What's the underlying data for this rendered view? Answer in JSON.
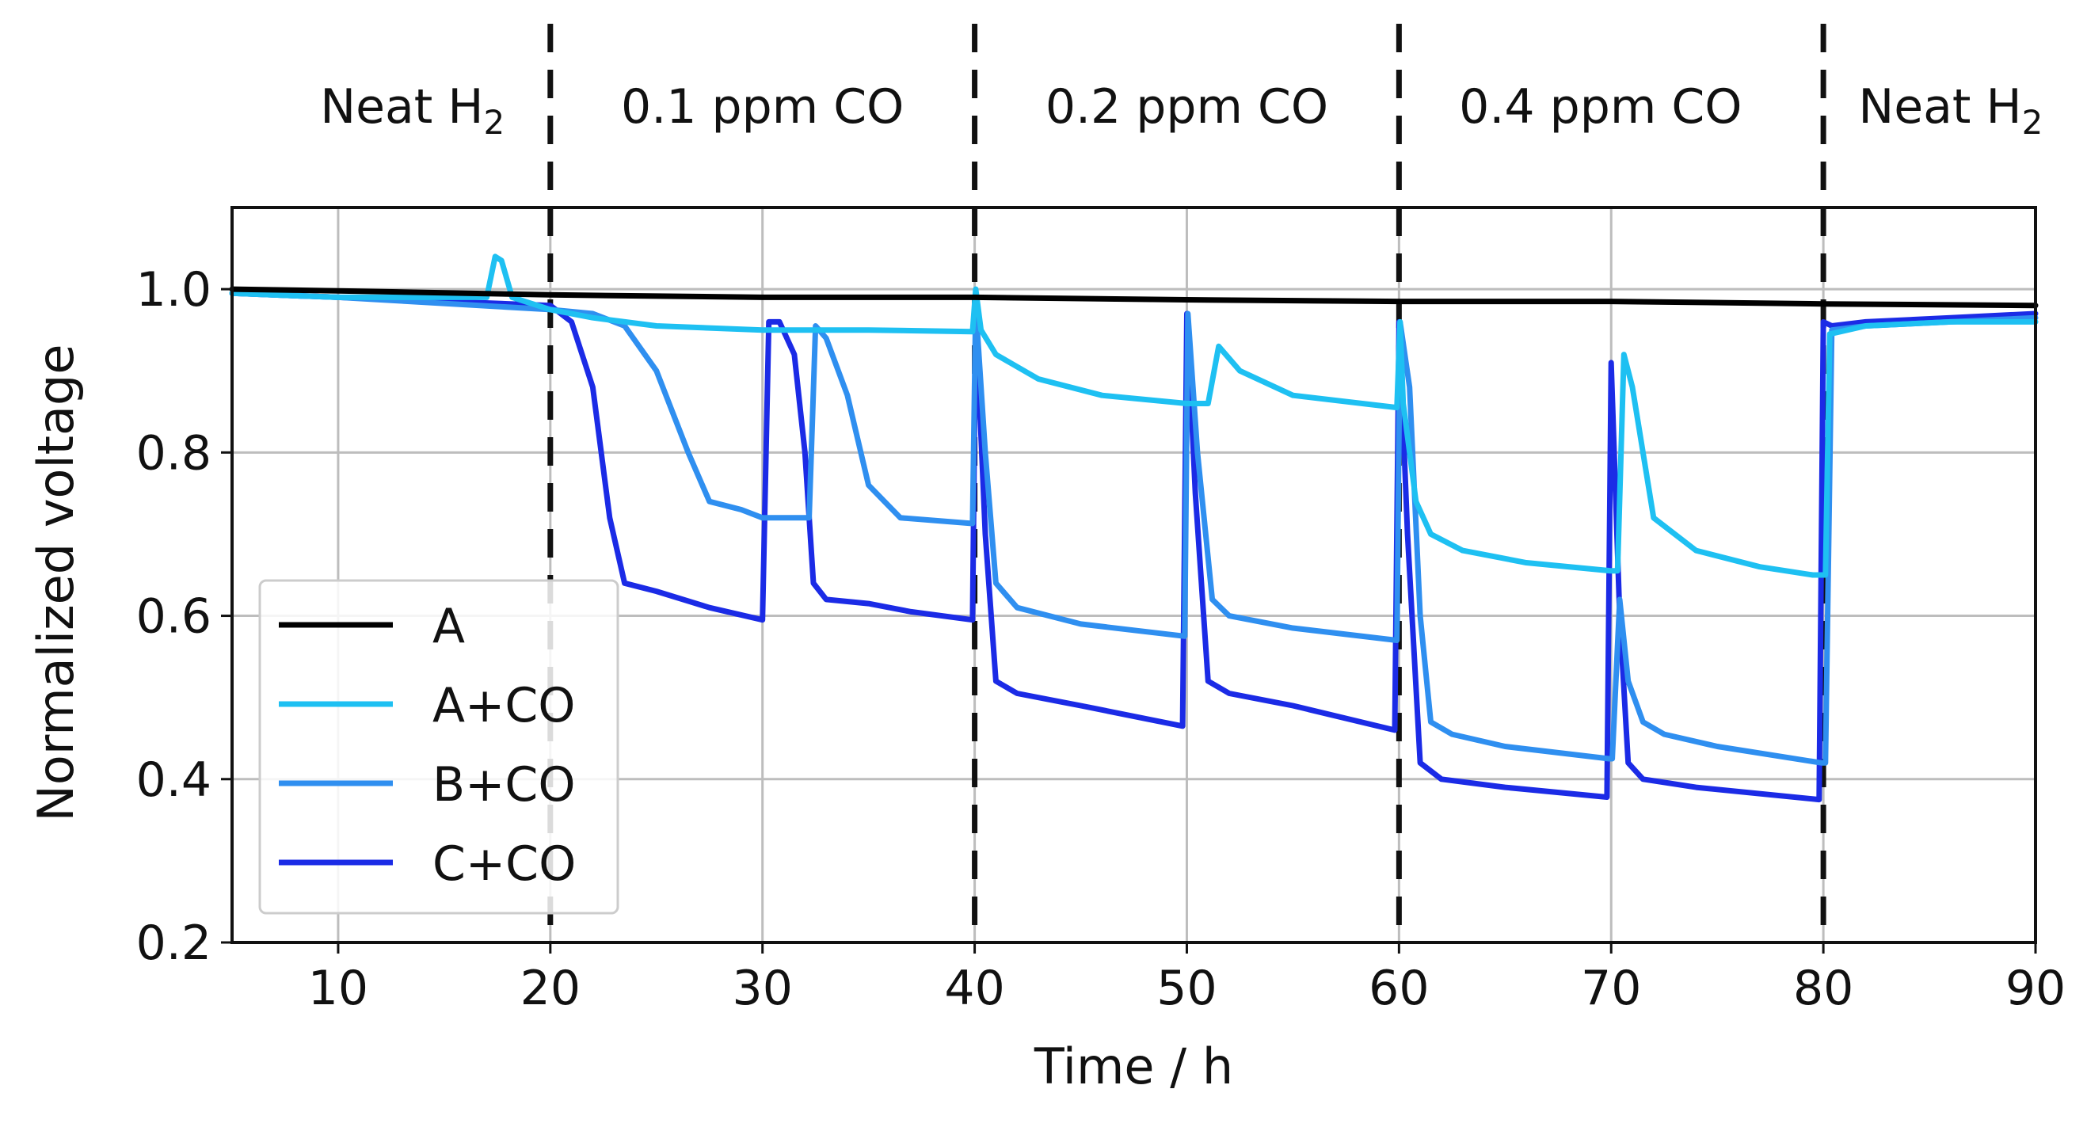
{
  "chart_data": {
    "type": "line",
    "title": "",
    "xlabel": "Time / h",
    "ylabel": "Normalized voltage",
    "xlim": [
      5,
      90
    ],
    "ylim": [
      0.2,
      1.1
    ],
    "xticks": [
      10,
      20,
      30,
      40,
      50,
      60,
      70,
      80,
      90
    ],
    "xtick_labels": [
      "10",
      "20",
      "30",
      "40",
      "50",
      "60",
      "70",
      "80",
      "90"
    ],
    "yticks": [
      0.2,
      0.4,
      0.6,
      0.8,
      1.0
    ],
    "ytick_labels": [
      "0.2",
      "0.4",
      "0.6",
      "0.8",
      "1.0"
    ],
    "grid": true,
    "legend_position": "lower-left",
    "phase_boundaries": [
      20,
      40,
      60,
      80
    ],
    "phases": [
      {
        "label": "Neat H",
        "sub": "2",
        "x_center": 13.5
      },
      {
        "label": "0.1 ppm CO",
        "sub": "",
        "x_center": 30
      },
      {
        "label": "0.2 ppm CO",
        "sub": "",
        "x_center": 50
      },
      {
        "label": "0.4 ppm CO",
        "sub": "",
        "x_center": 69.5
      },
      {
        "label": "Neat H",
        "sub": "2",
        "x_center": 86
      }
    ],
    "series": [
      {
        "name": "A",
        "color": "#000000",
        "x": [
          5,
          10,
          20,
          30,
          40,
          50,
          60,
          70,
          80,
          90
        ],
        "y": [
          1.0,
          0.998,
          0.993,
          0.99,
          0.99,
          0.987,
          0.985,
          0.985,
          0.982,
          0.98
        ]
      },
      {
        "name": "A+CO",
        "color": "#1ec0f2",
        "x": [
          5,
          10,
          17.0,
          17.4,
          17.7,
          18.2,
          20,
          22,
          25,
          30,
          32,
          35,
          39.9,
          40.05,
          40.3,
          41,
          43,
          46,
          50,
          51,
          51.5,
          52.5,
          55,
          59.9,
          60.05,
          60.2,
          60.8,
          61.5,
          63,
          66,
          70,
          70.3,
          70.6,
          71,
          72,
          74,
          77,
          79.5,
          80.1,
          80.3,
          82,
          86,
          90
        ],
        "y": [
          0.995,
          0.99,
          0.99,
          1.04,
          1.035,
          0.99,
          0.975,
          0.965,
          0.955,
          0.95,
          0.95,
          0.95,
          0.948,
          1.0,
          0.95,
          0.92,
          0.89,
          0.87,
          0.86,
          0.86,
          0.93,
          0.9,
          0.87,
          0.855,
          0.96,
          0.86,
          0.74,
          0.7,
          0.68,
          0.665,
          0.655,
          0.655,
          0.92,
          0.88,
          0.72,
          0.68,
          0.66,
          0.65,
          0.65,
          0.945,
          0.955,
          0.96,
          0.96
        ]
      },
      {
        "name": "B+CO",
        "color": "#2f8ff0",
        "x": [
          5,
          10,
          20,
          22,
          23.5,
          25,
          26.5,
          27.5,
          29,
          30,
          31.5,
          32.2,
          32.5,
          33,
          34,
          35,
          36.5,
          39.9,
          40.05,
          40.5,
          41,
          42,
          45,
          49.9,
          50.05,
          50.5,
          51.2,
          52,
          55,
          59.9,
          60.05,
          60.5,
          61,
          61.5,
          62.5,
          65,
          69.9,
          70.05,
          70.4,
          70.8,
          71.5,
          72.5,
          75,
          79.9,
          80.1,
          80.4,
          82,
          86,
          90
        ],
        "y": [
          0.995,
          0.99,
          0.975,
          0.97,
          0.955,
          0.9,
          0.8,
          0.74,
          0.73,
          0.72,
          0.72,
          0.72,
          0.955,
          0.94,
          0.87,
          0.76,
          0.72,
          0.713,
          0.98,
          0.8,
          0.64,
          0.61,
          0.59,
          0.575,
          0.97,
          0.8,
          0.62,
          0.6,
          0.585,
          0.57,
          0.96,
          0.88,
          0.6,
          0.47,
          0.455,
          0.44,
          0.425,
          0.425,
          0.62,
          0.52,
          0.47,
          0.455,
          0.44,
          0.42,
          0.42,
          0.95,
          0.955,
          0.96,
          0.965
        ]
      },
      {
        "name": "C+CO",
        "color": "#1b2be6",
        "x": [
          5,
          10,
          20,
          21,
          22,
          22.8,
          23.5,
          25,
          27.5,
          30,
          30.3,
          30.8,
          31.5,
          32,
          32.4,
          33,
          35,
          37,
          39.9,
          40.05,
          40.5,
          41,
          42,
          45,
          49.8,
          50.0,
          50.4,
          51,
          52,
          55,
          59.8,
          60.0,
          60.4,
          61,
          62,
          65,
          69.8,
          70.0,
          70.4,
          70.8,
          71.5,
          74,
          79.8,
          80.0,
          80.4,
          82,
          86,
          90
        ],
        "y": [
          0.995,
          0.99,
          0.98,
          0.96,
          0.88,
          0.72,
          0.64,
          0.63,
          0.61,
          0.595,
          0.96,
          0.96,
          0.92,
          0.8,
          0.64,
          0.62,
          0.615,
          0.605,
          0.595,
          0.97,
          0.7,
          0.52,
          0.505,
          0.49,
          0.465,
          0.97,
          0.75,
          0.52,
          0.505,
          0.49,
          0.46,
          0.96,
          0.7,
          0.42,
          0.4,
          0.39,
          0.378,
          0.91,
          0.6,
          0.42,
          0.4,
          0.39,
          0.375,
          0.96,
          0.955,
          0.96,
          0.965,
          0.97
        ]
      }
    ]
  }
}
